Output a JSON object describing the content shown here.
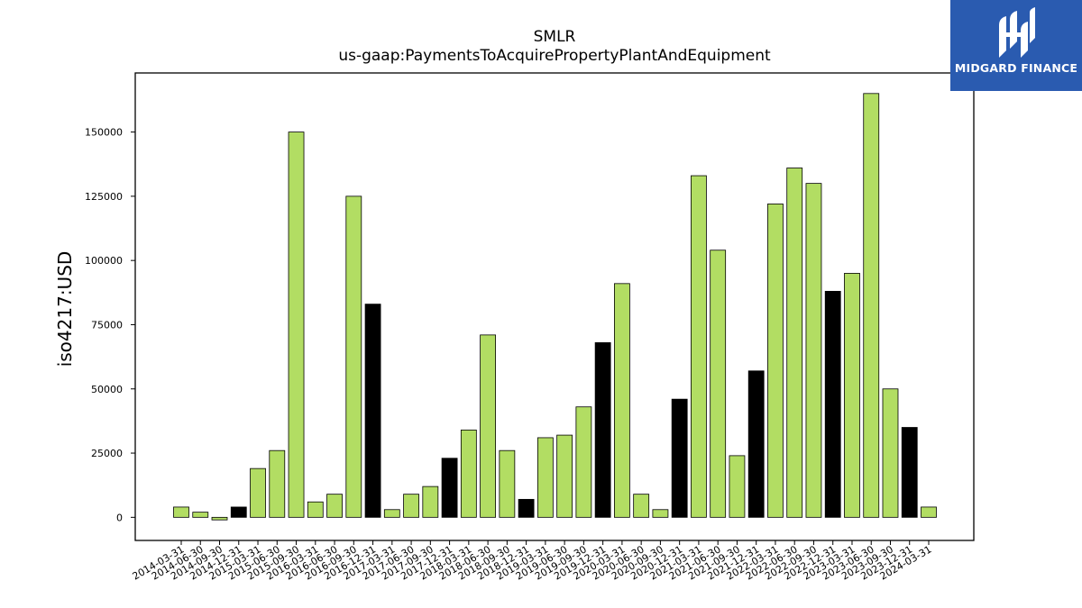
{
  "chart_data": {
    "type": "bar",
    "title": "SMLR",
    "subtitle": "us-gaap:PaymentsToAcquirePropertyPlantAndEquipment",
    "xlabel": "",
    "ylabel": "iso4217:USD",
    "ylim": [
      -9000,
      173000
    ],
    "yticks": [
      0,
      25000,
      50000,
      75000,
      100000,
      125000,
      150000
    ],
    "grid": false,
    "colors": {
      "quarter": "#b2dd63",
      "year_end": "#000000",
      "edge": "#000000"
    },
    "categories": [
      "2014-03-31",
      "2014-06-30",
      "2014-09-30",
      "2014-12-31",
      "2015-03-31",
      "2015-06-30",
      "2015-09-30",
      "2016-03-31",
      "2016-06-30",
      "2016-09-30",
      "2016-12-31",
      "2017-03-31",
      "2017-06-30",
      "2017-09-30",
      "2017-12-31",
      "2018-03-31",
      "2018-06-30",
      "2018-09-30",
      "2018-12-31",
      "2019-03-31",
      "2019-06-30",
      "2019-09-30",
      "2019-12-31",
      "2020-03-31",
      "2020-06-30",
      "2020-09-30",
      "2020-12-31",
      "2021-03-31",
      "2021-06-30",
      "2021-09-30",
      "2021-12-31",
      "2022-03-31",
      "2022-06-30",
      "2022-09-30",
      "2022-12-31",
      "2023-03-31",
      "2023-06-30",
      "2023-09-30",
      "2023-12-31",
      "2024-03-31"
    ],
    "values": [
      4000,
      2000,
      -1000,
      4000,
      19000,
      26000,
      150000,
      6000,
      9000,
      125000,
      83000,
      3000,
      9000,
      12000,
      23000,
      34000,
      71000,
      26000,
      7000,
      31000,
      32000,
      43000,
      68000,
      91000,
      9000,
      3000,
      46000,
      133000,
      104000,
      24000,
      57000,
      122000,
      136000,
      130000,
      88000,
      95000,
      165000,
      50000,
      35000,
      4000
    ],
    "year_end": [
      false,
      false,
      false,
      true,
      false,
      false,
      false,
      false,
      false,
      false,
      true,
      false,
      false,
      false,
      true,
      false,
      false,
      false,
      true,
      false,
      false,
      false,
      true,
      false,
      false,
      false,
      true,
      false,
      false,
      false,
      true,
      false,
      false,
      false,
      true,
      false,
      false,
      false,
      true,
      false
    ]
  },
  "logo": {
    "text": "MIDGARD FINANCE",
    "icon": "midgard-logo-icon"
  }
}
